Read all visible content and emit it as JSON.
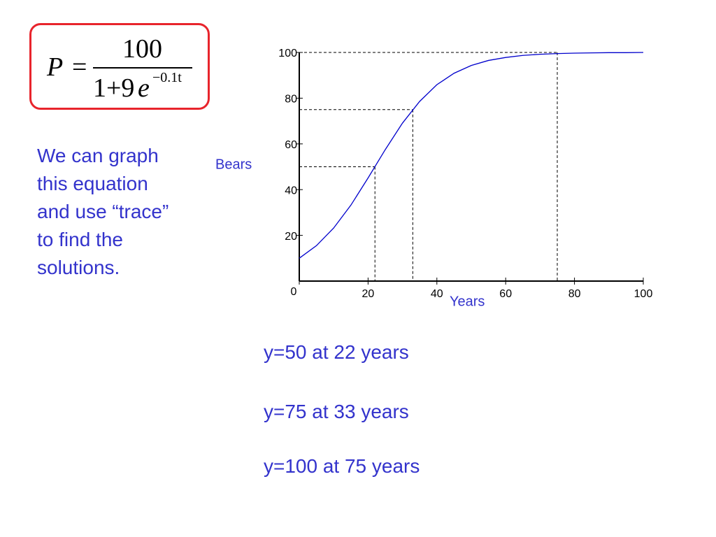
{
  "formula": {
    "lhs": "P",
    "equals": "=",
    "numerator": "100",
    "denominator": "1+9",
    "base": "e",
    "exponent": "−0.1t"
  },
  "explanation": [
    "We can graph",
    "this equation",
    "and use “trace”",
    "to find the",
    "solutions."
  ],
  "answers": [
    "y=50 at 22 years",
    "y=75 at 33 years",
    "y=100 at 75 years"
  ],
  "chart_data": {
    "type": "line",
    "xlabel": "Years",
    "ylabel": "Bears",
    "color": "#0000cc",
    "x": [
      0,
      5,
      10,
      15,
      20,
      25,
      30,
      35,
      40,
      45,
      50,
      55,
      60,
      65,
      70,
      75,
      80,
      85,
      90,
      95,
      100
    ],
    "values": [
      10,
      15.5,
      23.2,
      33.2,
      45.1,
      57.5,
      69.1,
      78.6,
      85.9,
      90.9,
      94.3,
      96.5,
      97.8,
      98.7,
      99.2,
      99.5,
      99.7,
      99.8,
      99.9,
      99.9,
      100
    ],
    "xlim": [
      0,
      100
    ],
    "ylim": [
      0,
      100
    ],
    "xticks": [
      0,
      20,
      40,
      60,
      80,
      100
    ],
    "yticks": [
      20,
      40,
      60,
      80,
      100
    ],
    "reference_points": [
      {
        "x": 22,
        "y": 50
      },
      {
        "x": 33,
        "y": 75
      },
      {
        "x": 75,
        "y": 100
      }
    ]
  }
}
